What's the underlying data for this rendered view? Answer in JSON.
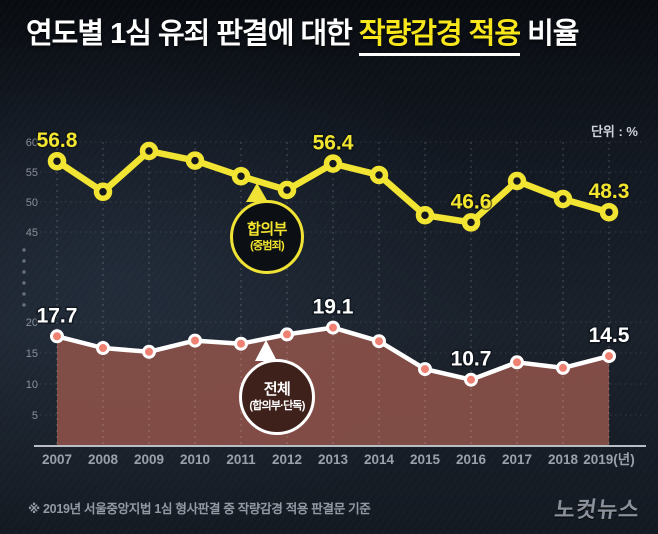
{
  "title": {
    "prefix": "연도별 1심 유죄 판결에 대한 ",
    "highlight": "작량감경 적용",
    "suffix": " 비율"
  },
  "unit_label": "단위 : %",
  "footnote": "※ 2019년 서울중앙지법 1심 형사판결 중 작량감경 적용 판결문 기준",
  "logo": "노컷뉴스",
  "callouts": {
    "panel": {
      "title": "합의부",
      "subtitle": "(중범죄)"
    },
    "total": {
      "title": "전체",
      "subtitle": "(합의부·단독)"
    }
  },
  "colors": {
    "background": "#131922",
    "title_highlight": "#f8e71b",
    "panel_line": "#f2e433",
    "total_line": "#ffffff",
    "total_point": "#ef8173",
    "area_fill": "#8a5049",
    "axis": "#b9bec6",
    "tick_text": "#8a919b"
  },
  "chart_data": {
    "type": "line",
    "title": "연도별 1심 유죄 판결에 대한 작량감경 적용 비율",
    "unit": "%",
    "categories": [
      "2007",
      "2008",
      "2009",
      "2010",
      "2011",
      "2012",
      "2013",
      "2014",
      "2015",
      "2016",
      "2017",
      "2018",
      "2019(년)"
    ],
    "y_axis": {
      "upper_ticks": [
        60,
        55,
        50,
        45
      ],
      "lower_ticks": [
        20,
        15,
        10,
        5
      ],
      "axis_break_between": [
        45,
        20
      ]
    },
    "grid": {
      "vertical_dashed": true,
      "horizontal_dotted": true
    },
    "legend_position": "callouts-on-plot",
    "series": [
      {
        "name": "합의부(중범죄)",
        "style": "line",
        "scale": "upper",
        "color": "#f2e433",
        "point_inner": "#14171d",
        "values": [
          56.8,
          51.7,
          58.5,
          56.9,
          54.3,
          52.0,
          56.4,
          54.5,
          47.8,
          46.6,
          53.5,
          50.5,
          48.3
        ],
        "point_labels": {
          "0": "56.8",
          "6": "56.4",
          "9": "46.6",
          "12": "48.3"
        }
      },
      {
        "name": "전체(합의부·단독)",
        "style": "line-area",
        "scale": "lower",
        "color": "#ffffff",
        "point_color": "#ef8173",
        "area_color": "#8a5049",
        "values": [
          17.7,
          15.8,
          15.2,
          17.0,
          16.5,
          18.0,
          19.1,
          16.9,
          12.4,
          10.7,
          13.5,
          12.6,
          14.5
        ],
        "point_labels": {
          "0": "17.7",
          "6": "19.1",
          "9": "10.7",
          "12": "14.5"
        }
      }
    ]
  }
}
